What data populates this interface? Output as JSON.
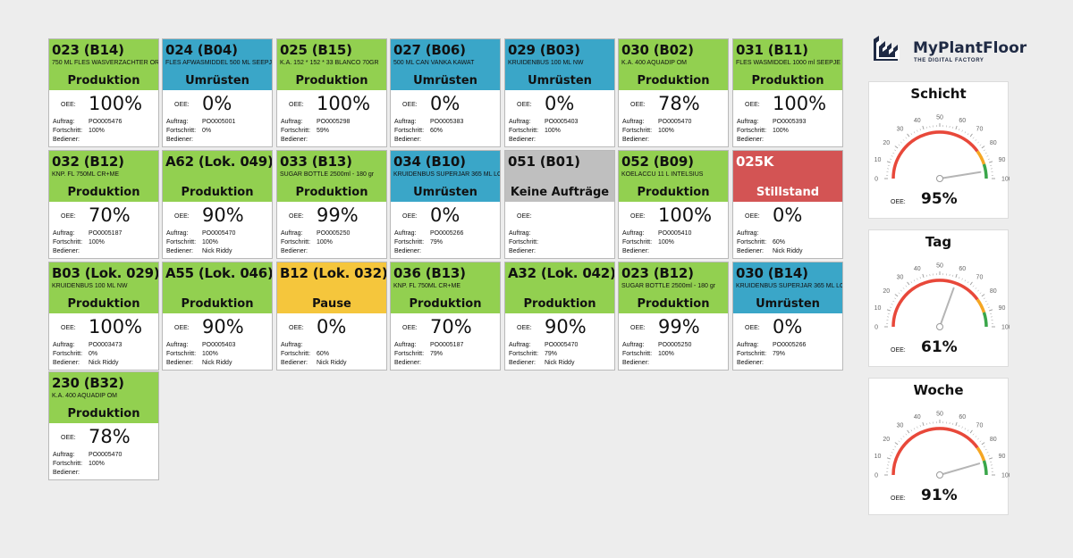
{
  "colors": {
    "produktion": "#92d050",
    "umruesten": "#3aa6c8",
    "pause": "#f5c63c",
    "keine": "#bfbfbf",
    "stillstand": "#d35454"
  },
  "labels": {
    "oee": "OEE:",
    "auftrag": "Auftrag:",
    "fortschritt": "Fortschritt:",
    "bediener": "Bediener:"
  },
  "brand": {
    "name": "MyPlantFloor",
    "tagline": "THE DIGITAL FACTORY"
  },
  "machines": [
    {
      "title": "023 (B14)",
      "desc": "750 ML FLES WASVERZACHTER ORANJE",
      "status": "Produktion",
      "state": "produktion",
      "oee": "100%",
      "auftrag": "PO0005476",
      "fortschritt": "100%",
      "bediener": ""
    },
    {
      "title": "024 (B04)",
      "desc": "FLES AFWASMIDDEL 500 ML SEEPJE",
      "status": "Umrüsten",
      "state": "umruesten",
      "oee": "0%",
      "auftrag": "PO0005001",
      "fortschritt": "0%",
      "bediener": ""
    },
    {
      "title": "025 (B15)",
      "desc": "K.A. 152 * 152 * 33  BLANCO 70GR",
      "status": "Produktion",
      "state": "produktion",
      "oee": "100%",
      "auftrag": "PO0005298",
      "fortschritt": "59%",
      "bediener": ""
    },
    {
      "title": "027 (B06)",
      "desc": "500 ML CAN VANKA KAWAT",
      "status": "Umrüsten",
      "state": "umruesten",
      "oee": "0%",
      "auftrag": "PO0005383",
      "fortschritt": "60%",
      "bediener": ""
    },
    {
      "title": "029 (B03)",
      "desc": "KRUIDENBUS 100 ML NW",
      "status": "Umrüsten",
      "state": "umruesten",
      "oee": "0%",
      "auftrag": "PO0005403",
      "fortschritt": "100%",
      "bediener": ""
    },
    {
      "title": "030 (B02)",
      "desc": "K.A. 400 AQUADIP OM",
      "status": "Produktion",
      "state": "produktion",
      "oee": "78%",
      "auftrag": "PO0005470",
      "fortschritt": "100%",
      "bediener": ""
    },
    {
      "title": "031 (B11)",
      "desc": "FLES WASMIDDEL 1000 ml SEEPJE",
      "status": "Produktion",
      "state": "produktion",
      "oee": "100%",
      "auftrag": "PO0005393",
      "fortschritt": "100%",
      "bediener": ""
    },
    {
      "title": "032 (B12)",
      "desc": "KNP. FL 750ML CR+ME",
      "status": "Produktion",
      "state": "produktion",
      "oee": "70%",
      "auftrag": "PO0005187",
      "fortschritt": "100%",
      "bediener": ""
    },
    {
      "title": "A62 (Lok. 049)",
      "desc": "",
      "status": "Produktion",
      "state": "produktion",
      "oee": "90%",
      "auftrag": "PO0005470",
      "fortschritt": "100%",
      "bediener": "Nick Riddy"
    },
    {
      "title": "033 (B13)",
      "desc": "SUGAR BOTTLE 2500ml - 180 gr",
      "status": "Produktion",
      "state": "produktion",
      "oee": "99%",
      "auftrag": "PO0005250",
      "fortschritt": "100%",
      "bediener": ""
    },
    {
      "title": "034 (B10)",
      "desc": "KRUIDENBUS SUPERJAR 365 ML LOS",
      "status": "Umrüsten",
      "state": "umruesten",
      "oee": "0%",
      "auftrag": "PO0005266",
      "fortschritt": "79%",
      "bediener": ""
    },
    {
      "title": "051 (B01)",
      "desc": "",
      "status": "Keine Aufträge",
      "state": "keine",
      "oee": "",
      "auftrag": "",
      "fortschritt": "",
      "bediener": ""
    },
    {
      "title": "052 (B09)",
      "desc": "KOELACCU 11 L INTELSIUS",
      "status": "Produktion",
      "state": "produktion",
      "oee": "100%",
      "auftrag": "PO0005410",
      "fortschritt": "100%",
      "bediener": ""
    },
    {
      "title": "025K",
      "desc": "",
      "status": "Stillstand",
      "state": "stillstand",
      "oee": "0%",
      "auftrag": "",
      "fortschritt": "60%",
      "bediener": "Nick Riddy"
    },
    {
      "title": "B03 (Lok. 029)",
      "desc": "KRUIDENBUS 100 ML NW",
      "status": "Produktion",
      "state": "produktion",
      "oee": "100%",
      "auftrag": "PO0003473",
      "fortschritt": "0%",
      "bediener": "Nick Riddy"
    },
    {
      "title": "A55 (Lok. 046)",
      "desc": "",
      "status": "Produktion",
      "state": "produktion",
      "oee": "90%",
      "auftrag": "PO0005403",
      "fortschritt": "100%",
      "bediener": "Nick Riddy"
    },
    {
      "title": "B12 (Lok. 032)",
      "desc": "",
      "status": "Pause",
      "state": "pause",
      "oee": "0%",
      "auftrag": "",
      "fortschritt": "60%",
      "bediener": "Nick Riddy"
    },
    {
      "title": "036 (B13)",
      "desc": "KNP. FL 750ML CR+ME",
      "status": "Produktion",
      "state": "produktion",
      "oee": "70%",
      "auftrag": "PO0005187",
      "fortschritt": "79%",
      "bediener": ""
    },
    {
      "title": "A32 (Lok. 042)",
      "desc": "",
      "status": "Produktion",
      "state": "produktion",
      "oee": "90%",
      "auftrag": "PO0005470",
      "fortschritt": "79%",
      "bediener": "Nick Riddy"
    },
    {
      "title": "023 (B12)",
      "desc": "SUGAR BOTTLE 2500ml - 180 gr",
      "status": "Produktion",
      "state": "produktion",
      "oee": "99%",
      "auftrag": "PO0005250",
      "fortschritt": "100%",
      "bediener": ""
    },
    {
      "title": "030 (B14)",
      "desc": "KRUIDENBUS SUPERJAR 365 ML LOS",
      "status": "Umrüsten",
      "state": "umruesten",
      "oee": "0%",
      "auftrag": "PO0005266",
      "fortschritt": "79%",
      "bediener": ""
    },
    {
      "title": "230 (B32)",
      "desc": "K.A. 400 AQUADIP OM",
      "status": "Produktion",
      "state": "produktion",
      "oee": "78%",
      "auftrag": "PO0005470",
      "fortschritt": "100%",
      "bediener": ""
    }
  ],
  "gauges": [
    {
      "title": "Schicht",
      "oee_label": "OEE:",
      "value_text": "95%",
      "value": 95,
      "ticks": [
        "0",
        "10",
        "20",
        "30",
        "40",
        "50",
        "60",
        "70",
        "80",
        "90",
        "100"
      ]
    },
    {
      "title": "Tag",
      "oee_label": "OEE:",
      "value_text": "61%",
      "value": 61,
      "ticks": [
        "0",
        "10",
        "20",
        "30",
        "40",
        "50",
        "60",
        "70",
        "80",
        "90",
        "100"
      ]
    },
    {
      "title": "Woche",
      "oee_label": "OEE:",
      "value_text": "91%",
      "value": 91,
      "ticks": [
        "0",
        "10",
        "20",
        "30",
        "40",
        "50",
        "60",
        "70",
        "80",
        "90",
        "100"
      ]
    }
  ]
}
